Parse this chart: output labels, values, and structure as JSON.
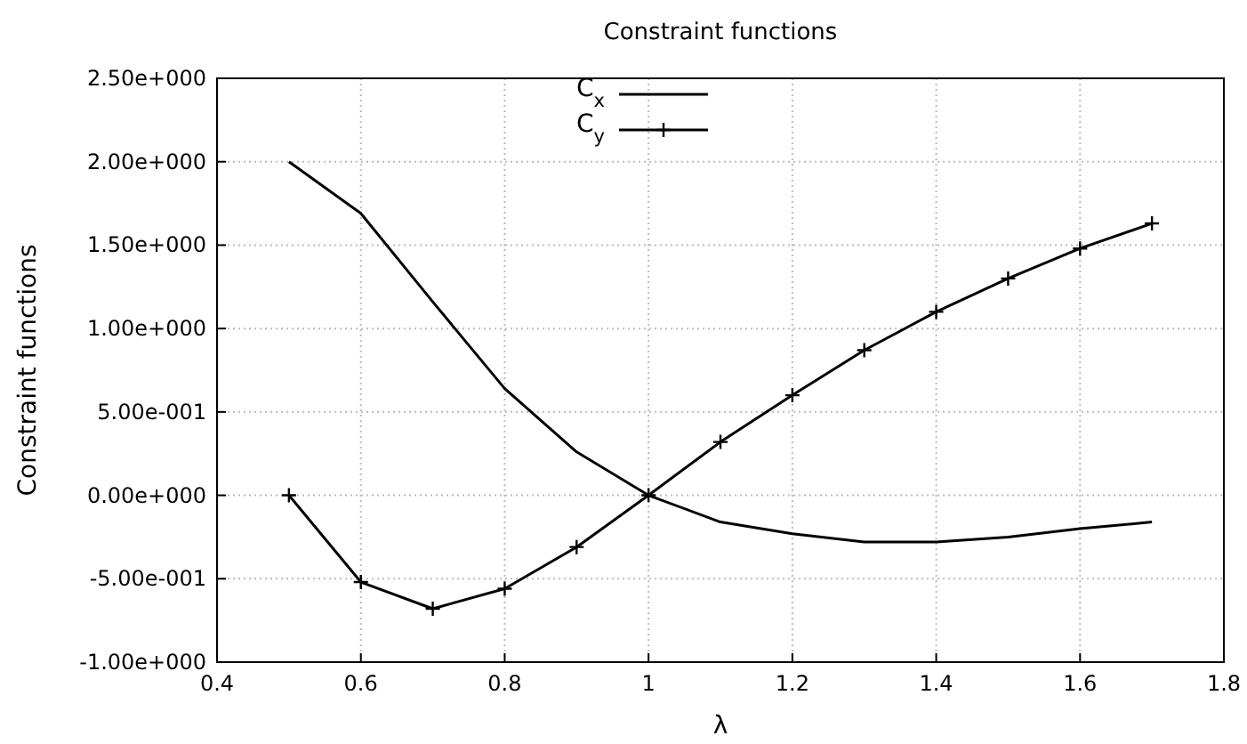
{
  "chart_data": {
    "type": "line",
    "title": "Constraint functions",
    "xlabel": "λ",
    "ylabel": "Constraint functions",
    "x": [
      0.5,
      0.6,
      0.7,
      0.8,
      0.9,
      1.0,
      1.1,
      1.2,
      1.3,
      1.4,
      1.5,
      1.6,
      1.7
    ],
    "series": [
      {
        "name": "C$_{x}$",
        "color": "#000000",
        "marker": "none",
        "values": [
          2.0,
          1.69,
          1.16,
          0.64,
          0.26,
          0,
          -0.16,
          -0.23,
          -0.28,
          -0.28,
          -0.25,
          -0.2,
          -0.16
        ]
      },
      {
        "name": "C$_{y}$",
        "color": "#000000",
        "marker": "cross",
        "values": [
          0,
          -0.52,
          -0.68,
          -0.56,
          -0.31,
          0,
          0.32,
          0.6,
          0.87,
          1.1,
          1.3,
          1.48,
          1.63
        ]
      }
    ],
    "xlim": [
      0.4,
      1.8
    ],
    "xticks": [
      0.4,
      0.6,
      0.8,
      1,
      1.2,
      1.4,
      1.6,
      1.8
    ],
    "ylim": [
      -1,
      2.5
    ],
    "yticks": [
      {
        "value": -1,
        "label": "-1.00e+000"
      },
      {
        "value": -0.5,
        "label": "-5.00e-001"
      },
      {
        "value": 0,
        "label": "0.00e+000"
      },
      {
        "value": 0.5,
        "label": "5.00e-001"
      },
      {
        "value": 1,
        "label": "1.00e+000"
      },
      {
        "value": 1.5,
        "label": "1.50e+000"
      },
      {
        "value": 2,
        "label": "2.00e+000"
      },
      {
        "value": 2.5,
        "label": "2.50e+000"
      }
    ],
    "grid": true,
    "legend": "top",
    "line_style": "solid"
  }
}
